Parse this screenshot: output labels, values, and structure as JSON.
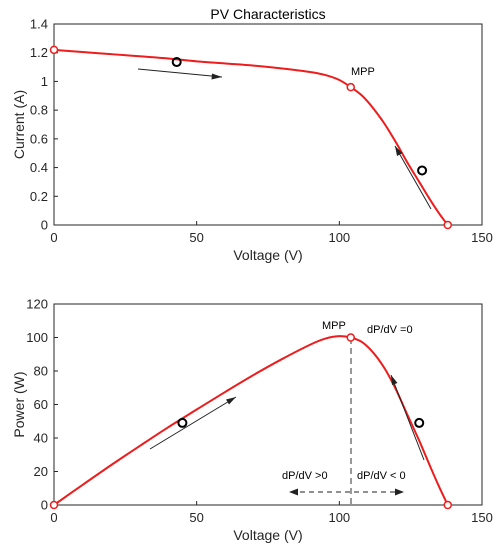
{
  "chart_data": [
    {
      "type": "line",
      "title": "PV Characteristics",
      "xlabel": "Voltage (V)",
      "ylabel": "Current (A)",
      "xlim": [
        0,
        150
      ],
      "ylim": [
        0,
        1.4
      ],
      "xticks": [
        "0",
        "50",
        "100",
        "150"
      ],
      "yticks": [
        "0",
        "0.2",
        "0.4",
        "0.6",
        "0.8",
        "1",
        "1.2",
        "1.4"
      ],
      "grid": false,
      "line_color": "#ee1c1c",
      "series": [
        {
          "x": [
            0,
            10,
            20,
            30,
            40,
            50,
            60,
            70,
            80,
            90,
            95,
            100,
            104,
            108,
            112,
            116,
            120,
            124,
            128,
            132,
            135,
            138
          ],
          "y": [
            1.22,
            1.205,
            1.19,
            1.175,
            1.16,
            1.14,
            1.125,
            1.11,
            1.09,
            1.065,
            1.045,
            1.01,
            0.96,
            0.9,
            0.81,
            0.7,
            0.57,
            0.43,
            0.3,
            0.17,
            0.08,
            0.0
          ]
        }
      ],
      "red_markers": [
        {
          "x": 0,
          "y": 1.22
        },
        {
          "x": 104,
          "y": 0.96
        },
        {
          "x": 138,
          "y": 0.0
        }
      ],
      "black_markers": [
        {
          "x": 43,
          "y": 1.135
        },
        {
          "x": 129,
          "y": 0.38
        }
      ],
      "annotations": [
        {
          "text": "MPP",
          "x": 104,
          "y": 0.96
        }
      ]
    },
    {
      "type": "line",
      "title": "",
      "xlabel": "Voltage (V)",
      "ylabel": "Power (W)",
      "xlim": [
        0,
        150
      ],
      "ylim": [
        0,
        120
      ],
      "xticks": [
        "0",
        "50",
        "100",
        "150"
      ],
      "yticks": [
        "0",
        "20",
        "40",
        "60",
        "80",
        "100",
        "120"
      ],
      "grid": false,
      "line_color": "#ee1c1c",
      "series": [
        {
          "x": [
            0,
            10,
            20,
            30,
            40,
            50,
            60,
            70,
            80,
            90,
            95,
            100,
            104,
            108,
            112,
            116,
            120,
            124,
            128,
            132,
            135,
            138
          ],
          "y": [
            0,
            12,
            23.8,
            35.2,
            46.4,
            57,
            67.5,
            77.7,
            87.2,
            95.9,
            99.3,
            100.8,
            100,
            97.2,
            90.7,
            81.2,
            68.4,
            53.3,
            38.4,
            22.4,
            10.8,
            0
          ]
        }
      ],
      "red_markers": [
        {
          "x": 0,
          "y": 0
        },
        {
          "x": 104,
          "y": 100
        },
        {
          "x": 138,
          "y": 0
        }
      ],
      "black_markers": [
        {
          "x": 45,
          "y": 49
        },
        {
          "x": 128,
          "y": 49
        }
      ],
      "annotations": [
        {
          "text": "MPP",
          "x": 104,
          "y": 100
        },
        {
          "text": "dP/dV =0",
          "x": 104,
          "y": 100
        },
        {
          "text": "dP/dV >0",
          "x": 84,
          "y": 6
        },
        {
          "text": "dP/dV < 0",
          "x": 116,
          "y": 6
        }
      ]
    }
  ]
}
